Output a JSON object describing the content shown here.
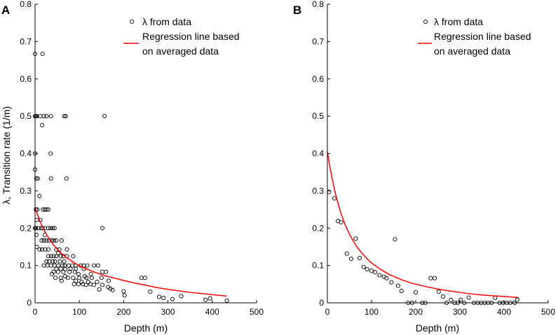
{
  "chart_data": [
    {
      "panel_label": "A",
      "type": "scatter",
      "xlabel": "Depth (m)",
      "ylabel": "λ, Transition rate (1/m)",
      "xlim": [
        0,
        500
      ],
      "ylim": [
        0,
        0.8
      ],
      "xticks": [
        "0",
        "100",
        "200",
        "300",
        "400",
        "500"
      ],
      "yticks": [
        "0",
        "0.1",
        "0.2",
        "0.3",
        "0.4",
        "0.5",
        "0.6",
        "0.7",
        "0.8"
      ],
      "grid": false,
      "legend_position": "top-center",
      "legend": [
        "λ from data",
        "Regression line based",
        "on averaged data"
      ],
      "scatter": {
        "name": "λ from data",
        "points": [
          [
            0,
            0.667
          ],
          [
            17,
            0.667
          ],
          [
            0,
            0.5
          ],
          [
            2,
            0.5
          ],
          [
            4,
            0.5
          ],
          [
            12,
            0.5
          ],
          [
            20,
            0.5
          ],
          [
            26,
            0.5
          ],
          [
            36,
            0.5
          ],
          [
            66,
            0.5
          ],
          [
            69,
            0.5
          ],
          [
            157,
            0.5
          ],
          [
            16,
            0.476
          ],
          [
            0,
            0.4
          ],
          [
            35,
            0.4
          ],
          [
            0,
            0.357
          ],
          [
            3,
            0.333
          ],
          [
            6,
            0.333
          ],
          [
            36,
            0.333
          ],
          [
            71,
            0.333
          ],
          [
            10,
            0.286
          ],
          [
            2,
            0.25
          ],
          [
            5,
            0.25
          ],
          [
            18,
            0.25
          ],
          [
            22,
            0.25
          ],
          [
            26,
            0.25
          ],
          [
            30,
            0.25
          ],
          [
            4,
            0.222
          ],
          [
            12,
            0.222
          ],
          [
            0,
            0.2
          ],
          [
            2,
            0.2
          ],
          [
            7,
            0.2
          ],
          [
            14,
            0.2
          ],
          [
            17,
            0.2
          ],
          [
            22,
            0.2
          ],
          [
            30,
            0.2
          ],
          [
            35,
            0.2
          ],
          [
            40,
            0.2
          ],
          [
            44,
            0.2
          ],
          [
            152,
            0.2
          ],
          [
            3,
            0.182
          ],
          [
            22,
            0.182
          ],
          [
            15,
            0.167
          ],
          [
            20,
            0.167
          ],
          [
            26,
            0.167
          ],
          [
            32,
            0.167
          ],
          [
            38,
            0.167
          ],
          [
            43,
            0.167
          ],
          [
            48,
            0.167
          ],
          [
            60,
            0.167
          ],
          [
            4,
            0.15
          ],
          [
            10,
            0.143
          ],
          [
            16,
            0.143
          ],
          [
            23,
            0.143
          ],
          [
            30,
            0.143
          ],
          [
            48,
            0.143
          ],
          [
            55,
            0.143
          ],
          [
            72,
            0.143
          ],
          [
            52,
            0.133
          ],
          [
            30,
            0.125
          ],
          [
            36,
            0.125
          ],
          [
            42,
            0.125
          ],
          [
            48,
            0.125
          ],
          [
            58,
            0.125
          ],
          [
            64,
            0.125
          ],
          [
            72,
            0.125
          ],
          [
            86,
            0.125
          ],
          [
            26,
            0.111
          ],
          [
            32,
            0.111
          ],
          [
            40,
            0.111
          ],
          [
            45,
            0.111
          ],
          [
            56,
            0.111
          ],
          [
            66,
            0.111
          ],
          [
            20,
            0.1
          ],
          [
            28,
            0.1
          ],
          [
            36,
            0.1
          ],
          [
            44,
            0.1
          ],
          [
            52,
            0.1
          ],
          [
            62,
            0.1
          ],
          [
            67,
            0.1
          ],
          [
            76,
            0.1
          ],
          [
            84,
            0.1
          ],
          [
            92,
            0.1
          ],
          [
            103,
            0.1
          ],
          [
            110,
            0.1
          ],
          [
            118,
            0.1
          ],
          [
            133,
            0.1
          ],
          [
            142,
            0.1
          ],
          [
            48,
            0.091
          ],
          [
            58,
            0.091
          ],
          [
            68,
            0.09
          ],
          [
            80,
            0.091
          ],
          [
            92,
            0.091
          ],
          [
            110,
            0.091
          ],
          [
            42,
            0.083
          ],
          [
            52,
            0.083
          ],
          [
            64,
            0.083
          ],
          [
            78,
            0.083
          ],
          [
            90,
            0.083
          ],
          [
            152,
            0.083
          ],
          [
            160,
            0.083
          ],
          [
            38,
            0.077
          ],
          [
            98,
            0.077
          ],
          [
            126,
            0.077
          ],
          [
            68,
            0.071
          ],
          [
            112,
            0.071
          ],
          [
            46,
            0.067
          ],
          [
            58,
            0.067
          ],
          [
            74,
            0.067
          ],
          [
            86,
            0.067
          ],
          [
            100,
            0.067
          ],
          [
            116,
            0.067
          ],
          [
            128,
            0.067
          ],
          [
            150,
            0.067
          ],
          [
            240,
            0.067
          ],
          [
            248,
            0.067
          ],
          [
            60,
            0.059
          ],
          [
            92,
            0.059
          ],
          [
            166,
            0.059
          ],
          [
            105,
            0.056
          ],
          [
            120,
            0.056
          ],
          [
            140,
            0.056
          ],
          [
            88,
            0.05
          ],
          [
            98,
            0.05
          ],
          [
            108,
            0.05
          ],
          [
            115,
            0.048
          ],
          [
            125,
            0.05
          ],
          [
            133,
            0.048
          ],
          [
            152,
            0.048
          ],
          [
            165,
            0.042
          ],
          [
            170,
            0.038
          ],
          [
            175,
            0.034
          ],
          [
            145,
            0.036
          ],
          [
            200,
            0.031
          ],
          [
            260,
            0.03
          ],
          [
            202,
            0.02
          ],
          [
            280,
            0.016
          ],
          [
            290,
            0.013
          ],
          [
            310,
            0.01
          ],
          [
            330,
            0.018
          ],
          [
            385,
            0.008
          ],
          [
            433,
            0.006
          ],
          [
            395,
            0.012
          ]
        ]
      },
      "regression": {
        "name": "Regression line based on averaged data",
        "x": [
          0,
          5,
          10,
          15,
          20,
          25,
          30,
          40,
          50,
          60,
          70,
          80,
          90,
          100,
          110,
          120,
          130,
          140,
          150,
          160,
          170,
          180,
          190,
          200,
          225,
          250,
          275,
          300,
          325,
          350,
          375,
          400,
          433
        ],
        "y": [
          0.255,
          0.238,
          0.222,
          0.208,
          0.196,
          0.185,
          0.175,
          0.158,
          0.144,
          0.132,
          0.122,
          0.114,
          0.106,
          0.1,
          0.094,
          0.089,
          0.084,
          0.08,
          0.076,
          0.072,
          0.069,
          0.066,
          0.063,
          0.06,
          0.053,
          0.047,
          0.041,
          0.036,
          0.032,
          0.028,
          0.025,
          0.022,
          0.018
        ]
      }
    },
    {
      "panel_label": "B",
      "type": "scatter",
      "xlabel": "Depth (m)",
      "ylabel": "",
      "xlim": [
        0,
        500
      ],
      "ylim": [
        0,
        0.8
      ],
      "xticks": [
        "0",
        "100",
        "200",
        "300",
        "400",
        "500"
      ],
      "yticks": [
        "0",
        "0.1",
        "0.2",
        "0.3",
        "0.4",
        "0.5",
        "0.6",
        "0.7",
        "0.8"
      ],
      "grid": false,
      "legend_position": "top-center",
      "legend": [
        "λ from data",
        "Regression line based",
        "on averaged data"
      ],
      "scatter": {
        "name": "λ from data",
        "points": [
          [
            4,
            0.297
          ],
          [
            16,
            0.28
          ],
          [
            24,
            0.219
          ],
          [
            31,
            0.216
          ],
          [
            44,
            0.132
          ],
          [
            54,
            0.118
          ],
          [
            64,
            0.172
          ],
          [
            73,
            0.12
          ],
          [
            82,
            0.096
          ],
          [
            90,
            0.09
          ],
          [
            100,
            0.086
          ],
          [
            108,
            0.082
          ],
          [
            118,
            0.074
          ],
          [
            128,
            0.07
          ],
          [
            134,
            0.066
          ],
          [
            145,
            0.055
          ],
          [
            153,
            0.17
          ],
          [
            160,
            0.046
          ],
          [
            168,
            0.032
          ],
          [
            183,
            0.0
          ],
          [
            192,
            0.0
          ],
          [
            200,
            0.028
          ],
          [
            215,
            0.0
          ],
          [
            222,
            0.0
          ],
          [
            234,
            0.066
          ],
          [
            243,
            0.066
          ],
          [
            252,
            0.03
          ],
          [
            262,
            0.017
          ],
          [
            270,
            0.0
          ],
          [
            280,
            0.008
          ],
          [
            288,
            0.0
          ],
          [
            295,
            0.0
          ],
          [
            302,
            0.008
          ],
          [
            310,
            0.0
          ],
          [
            320,
            0.014
          ],
          [
            332,
            0.0
          ],
          [
            340,
            0.0
          ],
          [
            348,
            0.0
          ],
          [
            356,
            0.0
          ],
          [
            364,
            0.0
          ],
          [
            372,
            0.0
          ],
          [
            380,
            0.013
          ],
          [
            390,
            0.0
          ],
          [
            398,
            0.0
          ],
          [
            406,
            0.0
          ],
          [
            414,
            0.0
          ],
          [
            424,
            0.0
          ],
          [
            430,
            0.008
          ]
        ]
      },
      "regression": {
        "name": "Regression line based on averaged data",
        "x": [
          0,
          5,
          10,
          15,
          20,
          25,
          30,
          40,
          50,
          60,
          70,
          80,
          90,
          100,
          110,
          120,
          130,
          140,
          150,
          160,
          170,
          180,
          190,
          200,
          225,
          250,
          275,
          300,
          325,
          350,
          375,
          400,
          433
        ],
        "y": [
          0.405,
          0.37,
          0.338,
          0.31,
          0.285,
          0.263,
          0.243,
          0.21,
          0.184,
          0.163,
          0.145,
          0.131,
          0.118,
          0.107,
          0.098,
          0.09,
          0.083,
          0.076,
          0.071,
          0.066,
          0.061,
          0.057,
          0.053,
          0.05,
          0.043,
          0.037,
          0.032,
          0.028,
          0.024,
          0.021,
          0.019,
          0.017,
          0.014
        ]
      }
    }
  ],
  "colors": {
    "regression": "#ff0000",
    "markers": "#000000",
    "axes": "#000000"
  }
}
